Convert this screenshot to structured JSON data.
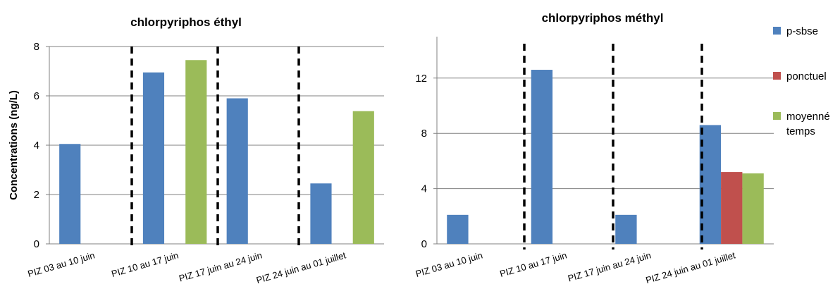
{
  "chart_data": [
    {
      "type": "bar",
      "title": "chlorpyriphos éthyl",
      "ylabel": "Concentrations (ng/L)",
      "xlabel": "",
      "ylim": [
        0,
        8
      ],
      "yticks": [
        "0",
        "2",
        "4",
        "6",
        "8"
      ],
      "grid": true,
      "categories": [
        "PIZ 03 au 10 juin",
        "PIZ  10 au 17 juin",
        "PIZ  17 juin au 24 juin",
        "PIZ 24 juin au 01 juillet"
      ],
      "series": [
        {
          "name": "p-sbse",
          "values": [
            4.05,
            6.95,
            5.9,
            2.45
          ]
        },
        {
          "name": "ponctuel",
          "values": [
            null,
            null,
            null,
            null
          ]
        },
        {
          "name": "moyenné temps",
          "values": [
            null,
            7.45,
            null,
            5.38
          ]
        }
      ]
    },
    {
      "type": "bar",
      "title": "chlorpyriphos méthyl",
      "ylabel": "",
      "xlabel": "",
      "ylim": [
        0,
        15
      ],
      "yticks": [
        "0",
        "4",
        "8",
        "12"
      ],
      "grid": true,
      "categories": [
        "PIZ 03 au 10 juin",
        "PIZ  10 au 17 juin",
        "PIZ  17 juin au 24 juin",
        "PIZ 24 juin au 01 juillet"
      ],
      "series": [
        {
          "name": "p-sbse",
          "values": [
            2.1,
            12.6,
            2.1,
            8.6
          ]
        },
        {
          "name": "ponctuel",
          "values": [
            null,
            null,
            null,
            5.2
          ]
        },
        {
          "name": "moyenné temps",
          "values": [
            null,
            null,
            null,
            5.1
          ]
        }
      ]
    }
  ],
  "legend": {
    "placement": "right",
    "items": [
      {
        "label_lines": [
          "p-sbse"
        ],
        "color": "#4F81BD"
      },
      {
        "label_lines": [
          "ponctuel"
        ],
        "color": "#C0504D"
      },
      {
        "label_lines": [
          "moyenné",
          "temps"
        ],
        "color": "#9BBB59"
      }
    ]
  },
  "colors": {
    "p-sbse": "#4F81BD",
    "ponctuel": "#C0504D",
    "moyenné temps": "#9BBB59",
    "gridline": "#808080",
    "separator": "#000000"
  }
}
